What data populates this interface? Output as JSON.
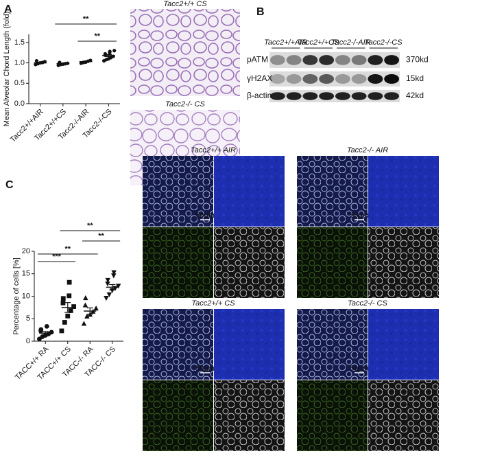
{
  "panels": [
    "A",
    "B",
    "C"
  ],
  "histology": [
    "Tacc2+/+ CS",
    "Tacc2-/- CS"
  ],
  "blot": {
    "groups": [
      "Tacc2+/+AIR",
      "Tacc2+/+CS",
      "Tacc2-/-AIR",
      "Tacc2-/-CS"
    ],
    "rows": [
      {
        "name": "pATM",
        "size": "370kd"
      },
      {
        "name": "γH2AX",
        "size": "15kd"
      },
      {
        "name": "β-actin",
        "size": "42kd"
      }
    ]
  },
  "microscopy": {
    "titles": [
      "Tacc2+/+ AIR",
      "Tacc2-/- AIR",
      "Tacc2+/+ CS",
      "Tacc2-/- CS"
    ],
    "scale_bar": "50μm"
  },
  "chart_data": [
    {
      "type": "dotplot",
      "y_label": "Mean Alveolar Chord Length (fold)",
      "categories": [
        "Tacc2+/+AIR",
        "Tacc2+/+CS",
        "Tacc2-/-AIR",
        "Tacc2-/-CS"
      ],
      "values": [
        [
          0.96,
          0.98,
          1.0,
          1.01,
          1.03,
          1.05
        ],
        [
          0.94,
          0.96,
          0.97,
          0.98,
          0.99,
          1.0,
          1.01
        ],
        [
          0.99,
          1.01,
          1.02,
          1.04,
          1.06
        ],
        [
          1.05,
          1.08,
          1.1,
          1.13,
          1.16,
          1.19,
          1.22,
          1.25,
          1.28,
          1.3
        ]
      ],
      "means": [
        1.0,
        0.98,
        1.03,
        1.18
      ],
      "errors": [
        0.015,
        0.01,
        0.015,
        0.025
      ],
      "markers": [
        "circle",
        "circle",
        "circle",
        "circle"
      ],
      "color": "#111111",
      "ylim": [
        0,
        1.7
      ],
      "yticks": [
        {
          "value": 0,
          "label": "0.0"
        },
        0.5,
        {
          "value": 1,
          "label": "1.0"
        },
        1.5
      ],
      "annotations": [
        {
          "text": "**",
          "between": [
            "Tacc2+/+CS",
            "Tacc2-/-CS"
          ]
        },
        {
          "text": "**",
          "between": [
            "Tacc2-/-AIR",
            "Tacc2-/-CS"
          ]
        }
      ]
    },
    {
      "type": "dotplot",
      "y_label": "Percentage of cells [%]",
      "categories": [
        "TACC+/+ RA",
        "TACC+/+ CS",
        "TACC-/- RA",
        "TACC-/- CS"
      ],
      "values": [
        [
          0.5,
          1.0,
          1.3,
          1.6,
          2.0,
          2.3,
          2.6,
          3.3
        ],
        [
          2.3,
          4.2,
          5.6,
          6.8,
          7.7,
          8.5,
          9.5,
          10.1,
          13.1
        ],
        [
          3.9,
          5.5,
          5.9,
          6.6,
          7.3,
          8.0,
          9.6
        ],
        [
          9.6,
          10.4,
          11.3,
          11.8,
          12.3,
          12.8,
          13.6,
          14.6,
          15.3
        ]
      ],
      "means": [
        1.8,
        7.5,
        6.7,
        12.0
      ],
      "errors": [
        0.35,
        1.1,
        0.7,
        0.6
      ],
      "markers": [
        "circle",
        "square",
        "triangle",
        "triangle-down"
      ],
      "color": "#111111",
      "ylim": [
        0,
        20
      ],
      "yticks": [
        0,
        5,
        10,
        15,
        20
      ],
      "annotations": [
        {
          "text": "***",
          "between": [
            "TACC+/+ RA",
            "TACC+/+ CS"
          ]
        },
        {
          "text": "**",
          "between": [
            "TACC+/+ RA",
            "TACC-/- RA"
          ]
        },
        {
          "text": "**",
          "between": [
            "TACC-/- RA",
            "TACC-/- CS"
          ]
        },
        {
          "text": "**",
          "between": [
            "TACC+/+ CS",
            "TACC-/- CS"
          ]
        }
      ]
    }
  ]
}
